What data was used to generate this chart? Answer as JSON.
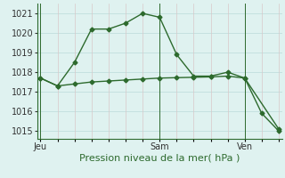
{
  "line1_x": [
    0,
    1,
    2,
    3,
    4,
    5,
    6,
    7,
    8,
    9,
    10,
    11,
    12,
    13,
    14
  ],
  "line1_y": [
    1017.7,
    1017.3,
    1018.5,
    1020.2,
    1020.2,
    1020.5,
    1021.0,
    1020.8,
    1018.9,
    1017.8,
    1017.8,
    1018.0,
    1017.7,
    1015.9,
    1015.0
  ],
  "line2_x": [
    0,
    1,
    2,
    3,
    4,
    5,
    6,
    7,
    8,
    9,
    10,
    11,
    12,
    14
  ],
  "line2_y": [
    1017.7,
    1017.3,
    1017.4,
    1017.5,
    1017.55,
    1017.6,
    1017.65,
    1017.7,
    1017.72,
    1017.74,
    1017.76,
    1017.8,
    1017.7,
    1015.1
  ],
  "line_color": "#2d6a2d",
  "bg_color": "#dff2f0",
  "grid_color": "#c0dede",
  "axis_color": "#2d6a2d",
  "xlabel": "Pression niveau de la mer( hPa )",
  "xlabel_fontsize": 8,
  "tick_fontsize": 7,
  "ylabel_ticks": [
    1015,
    1016,
    1017,
    1018,
    1019,
    1020,
    1021
  ],
  "xtick_labels_sparse": [
    [
      "Jeu",
      0
    ],
    [
      "Sam",
      7
    ],
    [
      "Ven",
      12
    ]
  ],
  "num_xticks": 14,
  "vline_x": [
    0,
    7,
    12
  ],
  "ylim": [
    1014.6,
    1021.5
  ],
  "xlim": [
    -0.2,
    14.2
  ],
  "marker": "D",
  "markersize": 2.5,
  "linewidth": 1.0
}
